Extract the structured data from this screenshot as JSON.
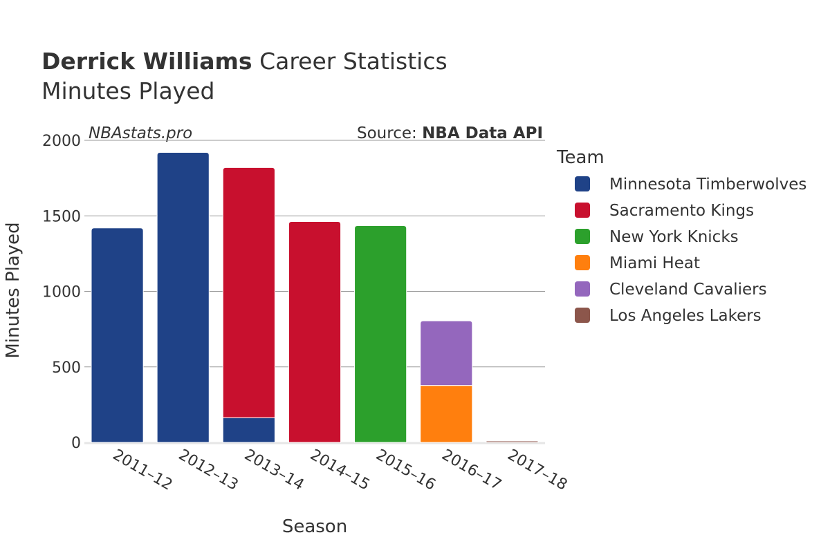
{
  "header": {
    "title_bold": "Derrick Williams",
    "title_rest": " Career Statistics",
    "subtitle": "Minutes Played"
  },
  "watermark": "NBAstats.pro",
  "source": {
    "prefix": "Source: ",
    "name": "NBA Data API"
  },
  "legend": {
    "title": "Team"
  },
  "chart_data": {
    "type": "bar",
    "stacked": true,
    "categories": [
      "2011–12",
      "2012–13",
      "2013–14",
      "2014–15",
      "2015–16",
      "2016–17",
      "2017–18"
    ],
    "series": [
      {
        "name": "Minnesota Timberwolves",
        "color": "#1f4287",
        "values": [
          1420,
          1920,
          163,
          0,
          0,
          0,
          0
        ]
      },
      {
        "name": "Sacramento Kings",
        "color": "#c8102e",
        "values": [
          0,
          0,
          1657,
          1462,
          0,
          0,
          0
        ]
      },
      {
        "name": "New York Knicks",
        "color": "#2ca02c",
        "values": [
          0,
          0,
          0,
          0,
          1435,
          0,
          0
        ]
      },
      {
        "name": "Miami Heat",
        "color": "#ff7f0e",
        "values": [
          0,
          0,
          0,
          0,
          0,
          377,
          0
        ]
      },
      {
        "name": "Cleveland Cavaliers",
        "color": "#9467bd",
        "values": [
          0,
          0,
          0,
          0,
          0,
          428,
          0
        ]
      },
      {
        "name": "Los Angeles Lakers",
        "color": "#8c564b",
        "values": [
          0,
          0,
          0,
          0,
          0,
          0,
          9
        ]
      }
    ],
    "xlabel": "Season",
    "ylabel": "Minutes Played",
    "ylim": [
      0,
      2000
    ],
    "yticks": [
      0,
      500,
      1000,
      1500,
      2000
    ],
    "grid": true,
    "legend_position": "right"
  }
}
